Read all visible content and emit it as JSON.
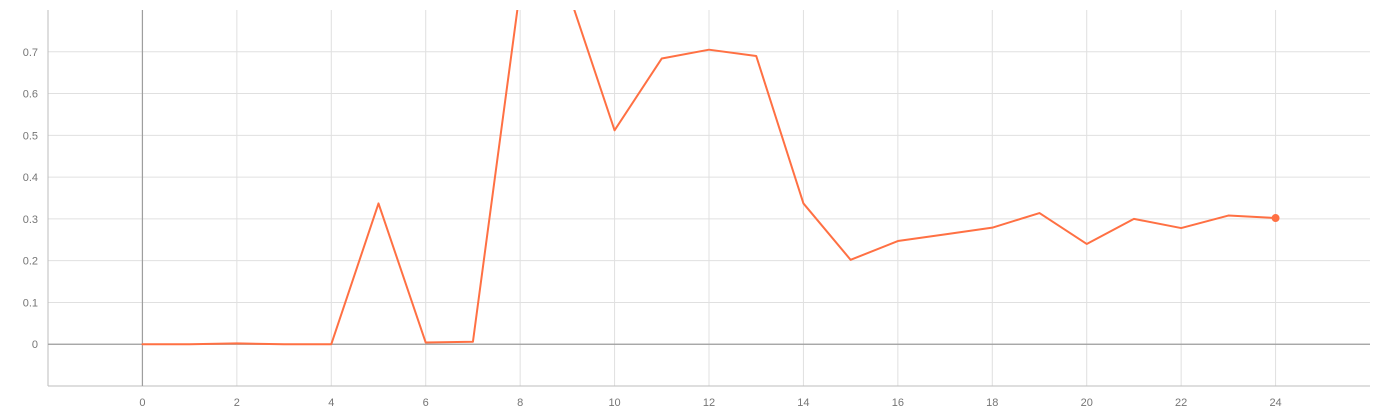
{
  "chart_data": {
    "type": "line",
    "title": "",
    "xlabel": "",
    "ylabel": "",
    "xlim": [
      -2,
      26
    ],
    "ylim": [
      -0.1,
      0.8
    ],
    "grid": true,
    "legend": "none",
    "x_ticks": [
      0,
      2,
      4,
      6,
      8,
      10,
      12,
      14,
      16,
      18,
      20,
      22,
      24
    ],
    "y_ticks": [
      0,
      0.1,
      0.2,
      0.3,
      0.4,
      0.5,
      0.6,
      0.7
    ],
    "x_tick_labels": [
      "0",
      "2",
      "4",
      "6",
      "8",
      "10",
      "12",
      "14",
      "16",
      "18",
      "20",
      "22",
      "24"
    ],
    "y_tick_labels": [
      "0",
      "0.1",
      "0.2",
      "0.3",
      "0.4",
      "0.5",
      "0.6",
      "0.7"
    ],
    "series": [
      {
        "color": "#ff7043",
        "x": [
          0,
          1,
          2,
          3,
          4,
          5,
          6,
          7,
          8,
          9,
          10,
          11,
          12,
          13,
          14,
          15,
          16,
          17,
          18,
          19,
          20,
          21,
          22,
          23,
          24
        ],
        "y": [
          0,
          0,
          0.002,
          0,
          0,
          0.337,
          0.004,
          0.006,
          0.85,
          0.85,
          0.512,
          0.684,
          0.705,
          0.69,
          0.337,
          0.202,
          0.247,
          0.263,
          0.279,
          0.314,
          0.24,
          0.3,
          0.278,
          0.308,
          0.302
        ]
      }
    ]
  }
}
